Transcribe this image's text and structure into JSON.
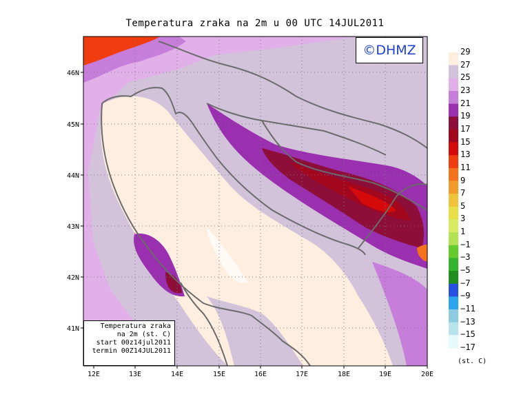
{
  "title": "Temperatura zraka na 2m u 00 UTC 14JUL2011",
  "watermark": "©DHMZ",
  "info_box": {
    "line1": "Temperatura zraka",
    "line2": "na 2m (st. C)",
    "line3": "start 00z14jul2011",
    "line4": "termin 00Z14JUL2011"
  },
  "x_ticks": [
    "12E",
    "13E",
    "14E",
    "15E",
    "16E",
    "17E",
    "18E",
    "19E",
    "20E"
  ],
  "y_ticks": [
    "46N",
    "45N",
    "44N",
    "43N",
    "42N",
    "41N"
  ],
  "colorbar": {
    "unit": "(st. C)",
    "labels": [
      "29",
      "27",
      "25",
      "23",
      "21",
      "19",
      "17",
      "15",
      "13",
      "11",
      "9",
      "7",
      "5",
      "3",
      "1",
      "−1",
      "−3",
      "−5",
      "−7",
      "−9",
      "−11",
      "−13",
      "−15",
      "−17"
    ],
    "colors": [
      "#fdeee0",
      "#d2c2da",
      "#e1b0e8",
      "#c77edb",
      "#9a2fb0",
      "#8e0e3a",
      "#a3071d",
      "#d50a0a",
      "#ef3d10",
      "#f5721c",
      "#f29a2a",
      "#f0c23a",
      "#e8de45",
      "#d8ec63",
      "#b3e255",
      "#66cc2e",
      "#34b42a",
      "#1f8e1f",
      "#2550e0",
      "#2aa4ec",
      "#8ccbe0",
      "#b7e4ec",
      "#e6fafa"
    ]
  }
}
